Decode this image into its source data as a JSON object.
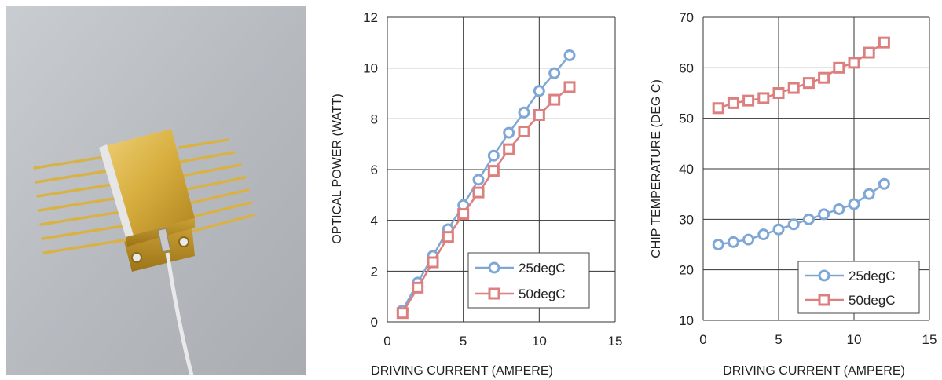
{
  "photo": {
    "icon": "laser-module-photo"
  },
  "chart_data": [
    {
      "type": "line",
      "xlabel": "DRIVING CURRENT (AMPERE)",
      "ylabel": "OPTICAL POWER (WATT)",
      "xlim": [
        0,
        15
      ],
      "ylim": [
        0,
        12
      ],
      "xticks": [
        0,
        5,
        10,
        15
      ],
      "yticks": [
        0,
        2,
        4,
        6,
        8,
        10,
        12
      ],
      "grid": true,
      "legend": "bottom-right",
      "x": [
        1,
        2,
        3,
        4,
        5,
        6,
        7,
        8,
        9,
        10,
        11,
        12
      ],
      "series": [
        {
          "name": "25degC",
          "marker": "circle",
          "color": "#7fa7d6",
          "values": [
            0.45,
            1.55,
            2.6,
            3.65,
            4.6,
            5.6,
            6.55,
            7.45,
            8.25,
            9.1,
            9.8,
            10.5
          ]
        },
        {
          "name": "50degC",
          "marker": "square",
          "color": "#dc7f7f",
          "values": [
            0.35,
            1.35,
            2.35,
            3.35,
            4.25,
            5.1,
            5.95,
            6.8,
            7.5,
            8.15,
            8.75,
            9.25
          ]
        }
      ]
    },
    {
      "type": "line",
      "xlabel": "DRIVING CURRENT (AMPERE)",
      "ylabel": "CHIP TEMPERATURE (DEG C)",
      "xlim": [
        0,
        15
      ],
      "ylim": [
        10,
        70
      ],
      "xticks": [
        0,
        5,
        10,
        15
      ],
      "yticks": [
        10,
        20,
        30,
        40,
        50,
        60,
        70
      ],
      "grid": true,
      "legend": "bottom-right",
      "x": [
        1,
        2,
        3,
        4,
        5,
        6,
        7,
        8,
        9,
        10,
        11,
        12
      ],
      "series": [
        {
          "name": "25degC",
          "marker": "circle",
          "color": "#7fa7d6",
          "values": [
            25,
            25.5,
            26,
            27,
            28,
            29,
            30,
            31,
            32,
            33,
            35,
            37
          ]
        },
        {
          "name": "50degC",
          "marker": "square",
          "color": "#dc7f7f",
          "values": [
            52,
            53,
            53.5,
            54,
            55,
            56,
            57,
            58,
            60,
            61,
            63,
            65
          ]
        }
      ]
    }
  ]
}
